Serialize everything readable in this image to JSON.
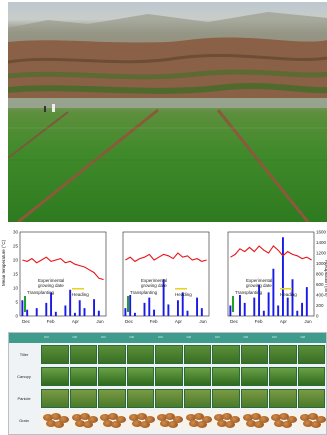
{
  "charts": {
    "ylabel_left": "Mean temperature (°C)",
    "ylabel_right": "Precipitation (mm)",
    "left_ticks": [
      "0",
      "5",
      "10",
      "15",
      "20",
      "25",
      "30"
    ],
    "right_ticks": [
      "0",
      "200",
      "400",
      "600",
      "800",
      "1000",
      "1200",
      "1400",
      "1600"
    ],
    "month_ticks": [
      "Dec",
      "Feb",
      "Apr",
      "Jun"
    ],
    "panels": [
      {
        "experimental_period": "Experimental\ngrowing date",
        "transplanting": "Transplanting",
        "heading": "Heading"
      },
      {
        "experimental_period": "Experimental\ngrowing date",
        "transplanting": "Transplanting",
        "heading": "Heading"
      },
      {
        "experimental_period": "Experimental\ngrowing date",
        "transplanting": "Transplanting",
        "heading": "Heading"
      }
    ]
  },
  "chart_data": {
    "type": "line",
    "title": "",
    "xlabel": "",
    "ylabel": "Mean temperature (°C)",
    "y2label": "Precipitation (mm)",
    "ylim": [
      0,
      30
    ],
    "y2lim": [
      0,
      1600
    ],
    "x_categories": [
      "Dec",
      "Feb",
      "Apr",
      "Jun"
    ],
    "panels": [
      {
        "temperature": [
          20,
          19.5,
          20.5,
          19,
          20,
          21,
          19.5,
          20,
          20.5,
          19,
          19.5,
          18.5,
          18,
          17.5,
          16.5,
          15.5,
          13.5,
          13
        ],
        "precipitation": [
          300,
          120,
          0,
          150,
          0,
          250,
          450,
          80,
          0,
          200,
          500,
          60,
          300,
          150,
          0,
          320,
          100,
          0
        ]
      },
      {
        "temperature": [
          20,
          21,
          19.5,
          20.5,
          21,
          22,
          20,
          21,
          22,
          21.5,
          20.5,
          22.5,
          21,
          21.5,
          20,
          20.5,
          19.5,
          20
        ],
        "precipitation": [
          150,
          400,
          60,
          0,
          250,
          350,
          120,
          0,
          700,
          220,
          0,
          300,
          450,
          100,
          0,
          350,
          150,
          0
        ]
      },
      {
        "temperature": [
          21,
          22,
          24,
          23,
          24.5,
          23,
          25,
          23.5,
          22.5,
          25,
          23.5,
          21.5,
          23,
          22,
          21.5,
          20.5,
          21,
          20
        ],
        "precipitation": [
          200,
          0,
          400,
          250,
          0,
          350,
          600,
          100,
          450,
          900,
          200,
          1500,
          350,
          700,
          100,
          250,
          550,
          0
        ]
      }
    ]
  },
  "trait_panel": {
    "row_labels": [
      "Tiller",
      "Canopy",
      "Panicle",
      "Grain"
    ],
    "column_headers": [
      "Ctrl",
      "Ctrl",
      "Ctrl",
      "Ctrl",
      "Ctrl",
      "Ctrl",
      "Ctrl",
      "Ctrl",
      "Ctrl",
      "Ctrl"
    ]
  },
  "colors": {
    "temperature_line": "#e8141b",
    "precipitation_bars": "#1a1ae8",
    "transplanting_marker": "#22a02a",
    "heading_marker": "#e8d21a",
    "panel_header": "#3f9c8c"
  }
}
